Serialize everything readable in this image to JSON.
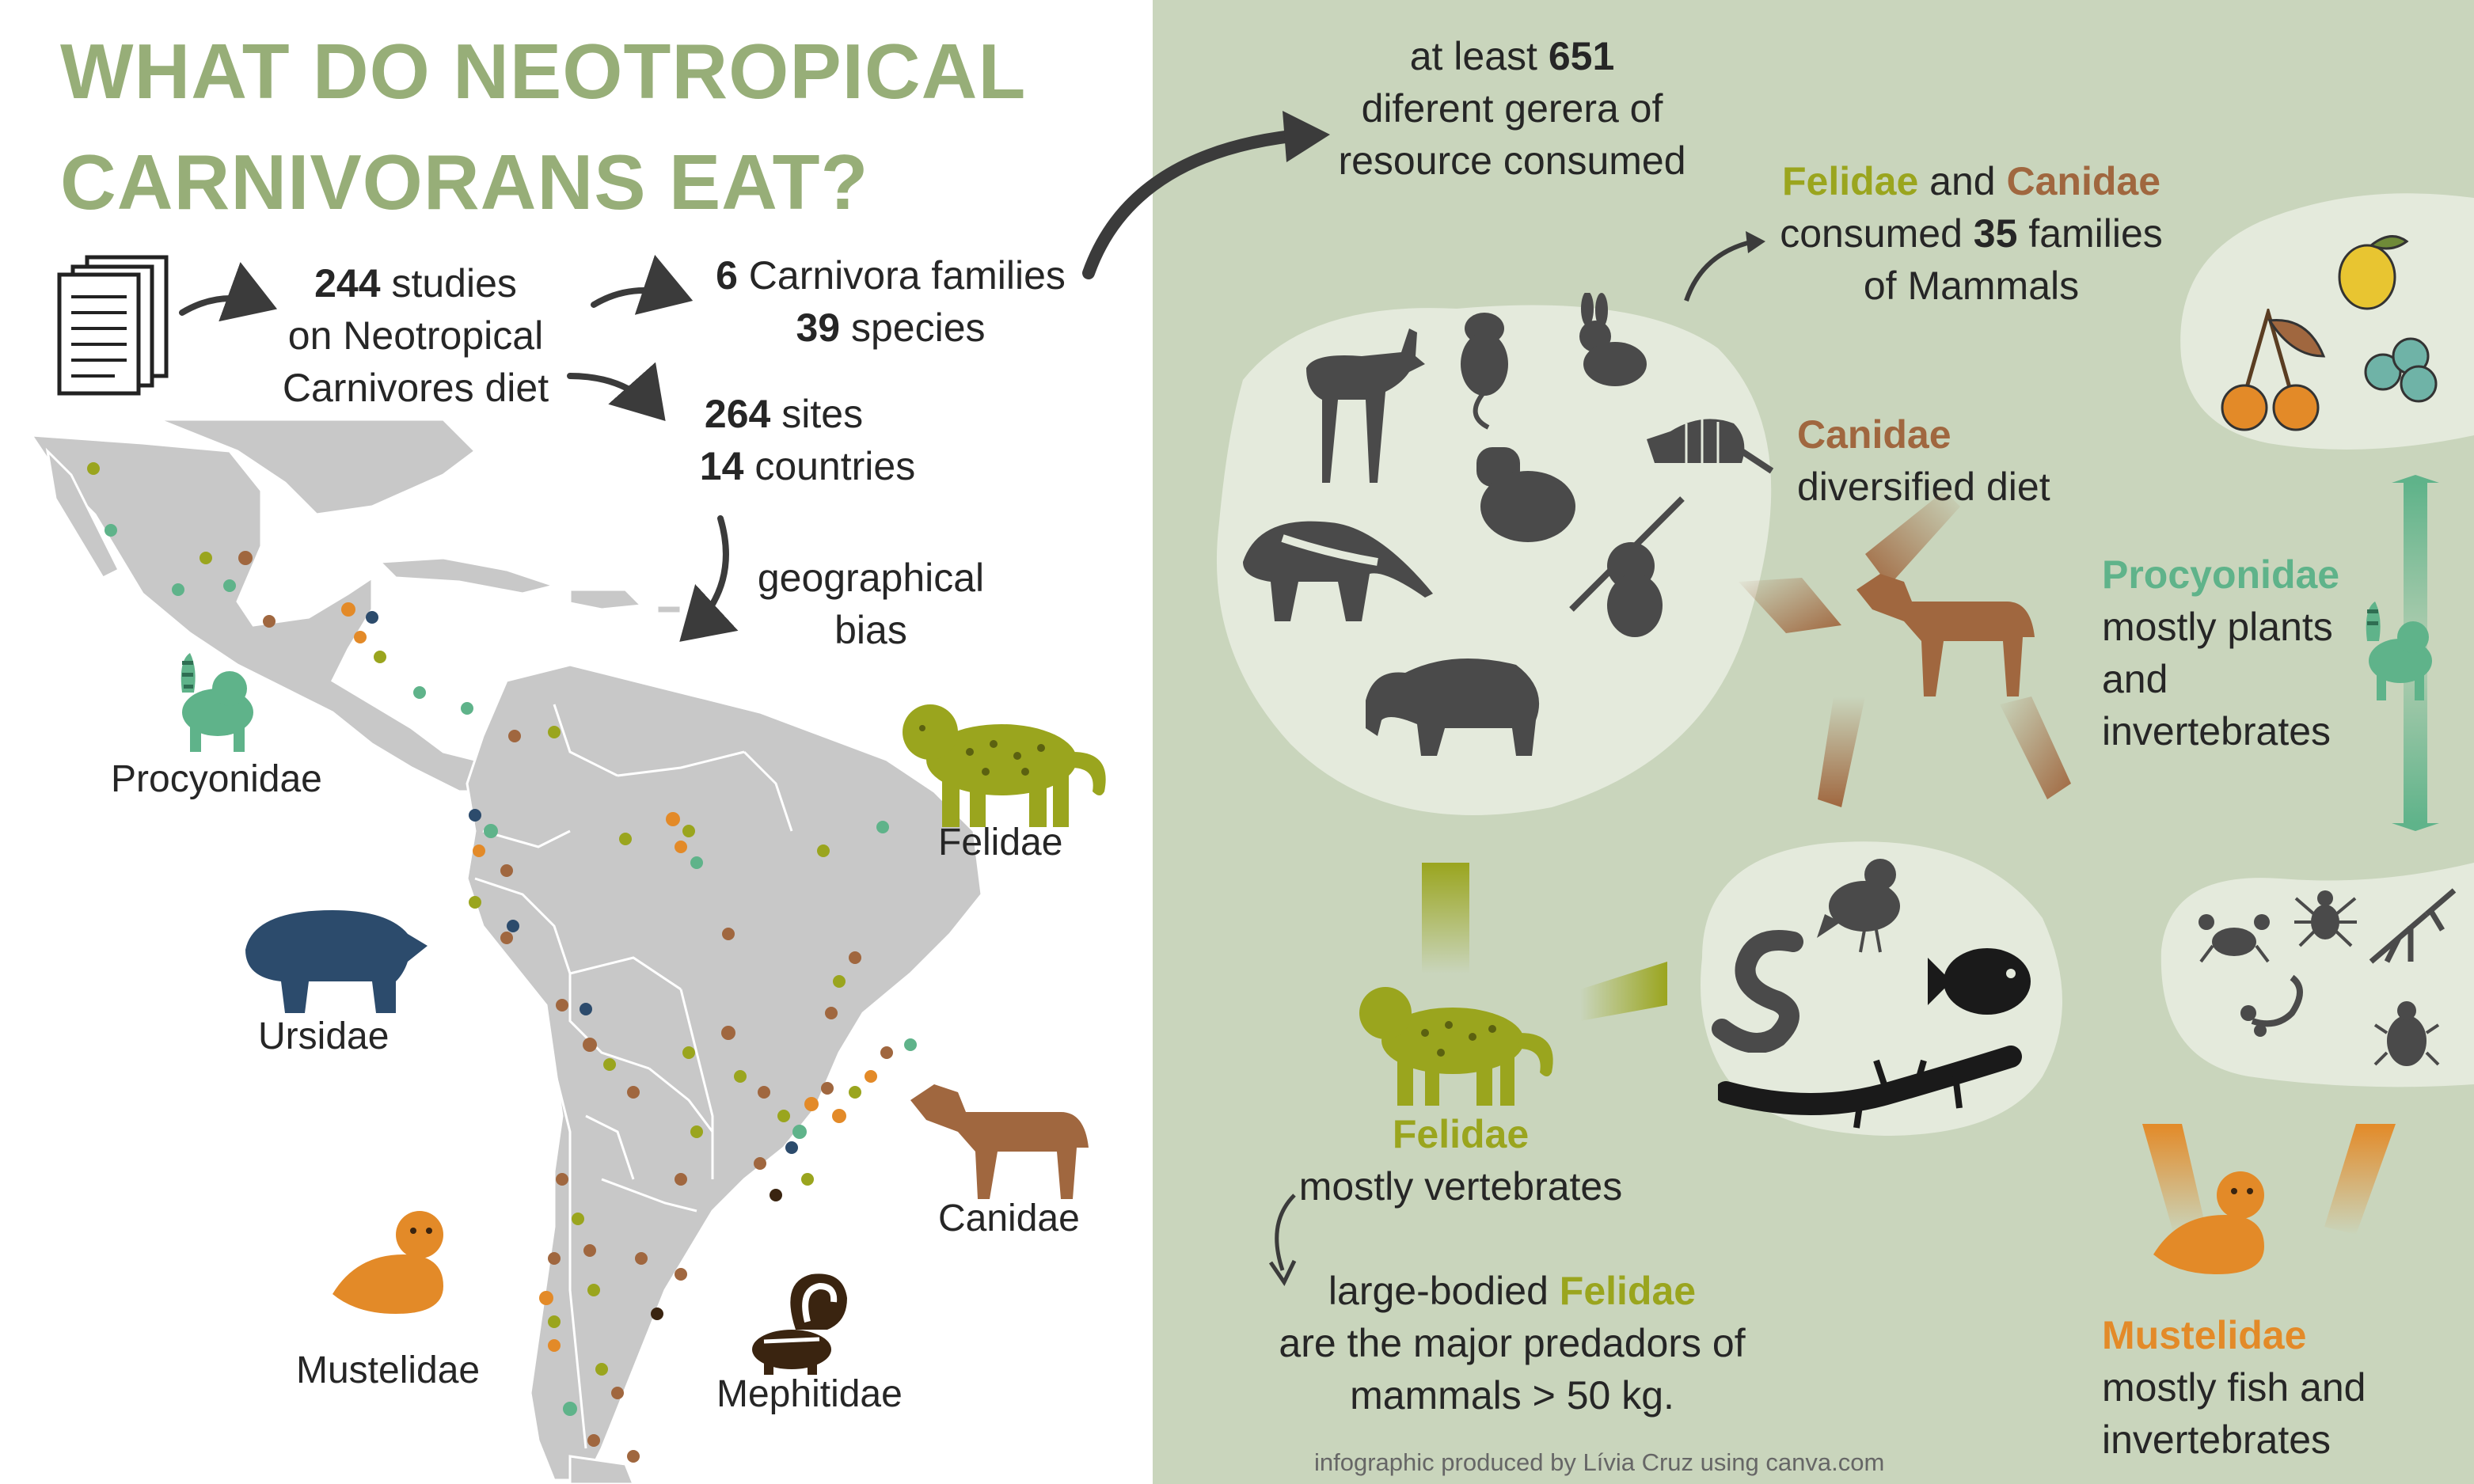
{
  "colors": {
    "title": "#97ae78",
    "panel": "#c9d5bc",
    "felidae": "#9aa51e",
    "canidae": "#a0673f",
    "procyonidae": "#5fb38a",
    "mustelidae": "#e38a28",
    "ursidae": "#2c4b6c",
    "mephitidae": "#3a2410",
    "silhouette": "#4a4a4a",
    "map_land": "#c8c8c8"
  },
  "title": {
    "line1": "WHAT DO NEOTROPICAL",
    "line2": "CARNIVORANS EAT?"
  },
  "stats": {
    "studies_num": "244",
    "studies_word": "studies",
    "studies_line2": "on Neotropical",
    "studies_line3": "Carnivores diet",
    "families_num": "6",
    "families_word": "Carnivora families",
    "species_num": "39",
    "species_word": "species",
    "sites_num": "264",
    "sites_word": "sites",
    "countries_num": "14",
    "countries_word": "countries",
    "bias_line1": "geographical",
    "bias_line2": "bias"
  },
  "map_families": {
    "procyonidae": "Procyonidae",
    "felidae": "Felidae",
    "ursidae": "Ursidae",
    "canidae": "Canidae",
    "mustelidae": "Mustelidae",
    "mephitidae": "Mephitidae"
  },
  "right": {
    "genera_line1_pre": "at least",
    "genera_num": "651",
    "genera_line2": "diferent gerera of",
    "genera_line3": "resource consumed",
    "fel_can_fel": "Felidae",
    "fel_can_and": "and",
    "fel_can_can": "Canidae",
    "fel_can_line2_pre": "consumed",
    "fel_can_num": "35",
    "fel_can_line2_post": "families",
    "fel_can_line3": "of Mammals",
    "canidae_name": "Canidae",
    "canidae_desc": "diversified diet",
    "procyonidae_name": "Procyonidae",
    "procyonidae_desc1": "mostly  plants",
    "procyonidae_desc2": "and",
    "procyonidae_desc3": "invertebrates",
    "felidae_name": "Felidae",
    "felidae_desc": "mostly vertebrates",
    "large_pre": "large-bodied",
    "large_fel": "Felidae",
    "large_line2": "are the major predadors of",
    "large_line3": "mammals > 50 kg.",
    "mustelidae_name": "Mustelidae",
    "mustelidae_desc1": "mostly fish  and",
    "mustelidae_desc2": "invertebrates",
    "credit": "infographic produced by Lívia Cruz using canva.com"
  },
  "icons": {
    "document": "document-stack-icon",
    "deer": "deer-icon",
    "rodent": "rodent-icon",
    "rabbit": "rabbit-icon",
    "armadillo": "armadillo-icon",
    "capybara": "capybara-icon",
    "anteater": "anteater-icon",
    "sloth": "sloth-icon",
    "tapir": "tapir-icon",
    "bird": "bird-icon",
    "snake": "snake-icon",
    "fish": "fish-icon",
    "lizard": "lizard-icon",
    "lemon": "lemon-icon",
    "cherries": "cherries-icon",
    "berries": "berries-icon",
    "crab": "crab-icon",
    "spider": "spider-icon",
    "mantis": "mantis-icon",
    "scorpion": "scorpion-icon",
    "beetle": "beetle-icon"
  }
}
